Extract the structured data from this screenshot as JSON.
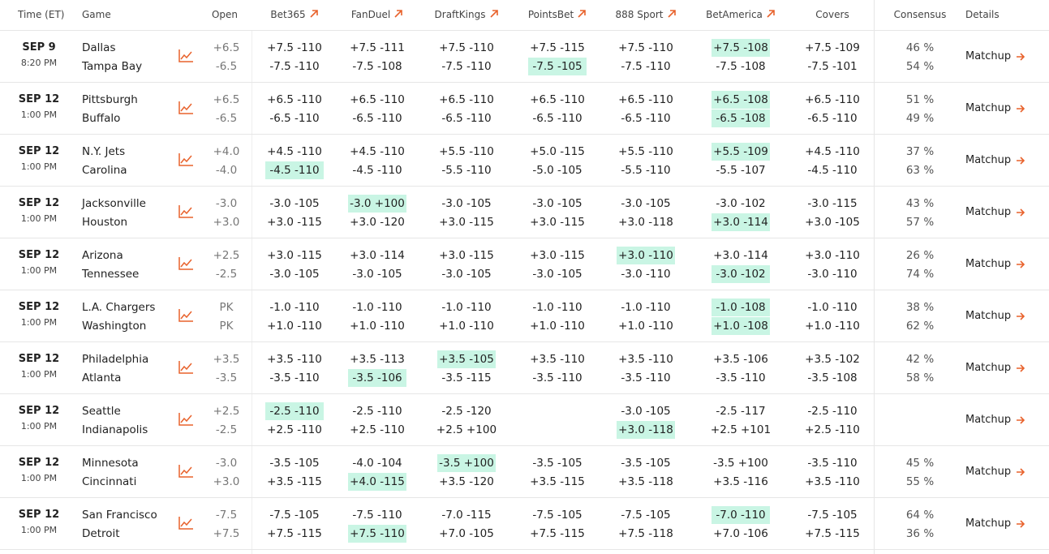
{
  "columns": {
    "time": "Time (ET)",
    "game": "Game",
    "open": "Open",
    "consensus": "Consensus",
    "details": "Details"
  },
  "books": [
    {
      "name": "Bet365",
      "external": true
    },
    {
      "name": "FanDuel",
      "external": true
    },
    {
      "name": "DraftKings",
      "external": true
    },
    {
      "name": "PointsBet",
      "external": true
    },
    {
      "name": "888 Sport",
      "external": true
    },
    {
      "name": "BetAmerica",
      "external": true
    },
    {
      "name": "Covers",
      "external": false
    }
  ],
  "highlight_color": "#c9f5e4",
  "accent_color": "#e8622c",
  "rows": [
    {
      "date": "SEP 9",
      "time": "8:20 PM",
      "teams": [
        "Dallas",
        "Tampa Bay"
      ],
      "open": [
        "+6.5",
        "-6.5"
      ],
      "lines": [
        [
          "+7.5 -110",
          "-7.5 -110"
        ],
        [
          "+7.5 -111",
          "-7.5 -108"
        ],
        [
          "+7.5 -110",
          "-7.5 -110"
        ],
        [
          "+7.5 -115",
          "-7.5 -105"
        ],
        [
          "+7.5 -110",
          "-7.5 -110"
        ],
        [
          "+7.5 -108",
          "-7.5 -108"
        ],
        [
          "+7.5 -109",
          "-7.5 -101"
        ]
      ],
      "best": [
        [
          3,
          1
        ],
        [
          5,
          0
        ]
      ],
      "consensus": [
        "46 %",
        "54 %"
      ],
      "details": "Matchup"
    },
    {
      "date": "SEP 12",
      "time": "1:00 PM",
      "teams": [
        "Pittsburgh",
        "Buffalo"
      ],
      "open": [
        "+6.5",
        "-6.5"
      ],
      "lines": [
        [
          "+6.5 -110",
          "-6.5 -110"
        ],
        [
          "+6.5 -110",
          "-6.5 -110"
        ],
        [
          "+6.5 -110",
          "-6.5 -110"
        ],
        [
          "+6.5 -110",
          "-6.5 -110"
        ],
        [
          "+6.5 -110",
          "-6.5 -110"
        ],
        [
          "+6.5 -108",
          "-6.5 -108"
        ],
        [
          "+6.5 -110",
          "-6.5 -110"
        ]
      ],
      "best": [
        [
          5,
          0
        ],
        [
          5,
          1
        ]
      ],
      "consensus": [
        "51 %",
        "49 %"
      ],
      "details": "Matchup"
    },
    {
      "date": "SEP 12",
      "time": "1:00 PM",
      "teams": [
        "N.Y. Jets",
        "Carolina"
      ],
      "open": [
        "+4.0",
        "-4.0"
      ],
      "lines": [
        [
          "+4.5 -110",
          "-4.5 -110"
        ],
        [
          "+4.5 -110",
          "-4.5 -110"
        ],
        [
          "+5.5 -110",
          "-5.5 -110"
        ],
        [
          "+5.0 -115",
          "-5.0 -105"
        ],
        [
          "+5.5 -110",
          "-5.5 -110"
        ],
        [
          "+5.5 -109",
          "-5.5 -107"
        ],
        [
          "+4.5 -110",
          "-4.5 -110"
        ]
      ],
      "best": [
        [
          0,
          1
        ],
        [
          5,
          0
        ]
      ],
      "consensus": [
        "37 %",
        "63 %"
      ],
      "details": "Matchup"
    },
    {
      "date": "SEP 12",
      "time": "1:00 PM",
      "teams": [
        "Jacksonville",
        "Houston"
      ],
      "open": [
        "-3.0",
        "+3.0"
      ],
      "lines": [
        [
          "-3.0 -105",
          "+3.0 -115"
        ],
        [
          "-3.0 +100",
          "+3.0 -120"
        ],
        [
          "-3.0 -105",
          "+3.0 -115"
        ],
        [
          "-3.0 -105",
          "+3.0 -115"
        ],
        [
          "-3.0 -105",
          "+3.0 -118"
        ],
        [
          "-3.0 -102",
          "+3.0 -114"
        ],
        [
          "-3.0 -115",
          "+3.0 -105"
        ]
      ],
      "best": [
        [
          1,
          0
        ],
        [
          5,
          1
        ]
      ],
      "consensus": [
        "43 %",
        "57 %"
      ],
      "details": "Matchup"
    },
    {
      "date": "SEP 12",
      "time": "1:00 PM",
      "teams": [
        "Arizona",
        "Tennessee"
      ],
      "open": [
        "+2.5",
        "-2.5"
      ],
      "lines": [
        [
          "+3.0 -115",
          "-3.0 -105"
        ],
        [
          "+3.0 -114",
          "-3.0 -105"
        ],
        [
          "+3.0 -115",
          "-3.0 -105"
        ],
        [
          "+3.0 -115",
          "-3.0 -105"
        ],
        [
          "+3.0 -110",
          "-3.0 -110"
        ],
        [
          "+3.0 -114",
          "-3.0 -102"
        ],
        [
          "+3.0 -110",
          "-3.0 -110"
        ]
      ],
      "best": [
        [
          4,
          0
        ],
        [
          5,
          1
        ]
      ],
      "consensus": [
        "26 %",
        "74 %"
      ],
      "details": "Matchup"
    },
    {
      "date": "SEP 12",
      "time": "1:00 PM",
      "teams": [
        "L.A. Chargers",
        "Washington"
      ],
      "open": [
        "PK",
        "PK"
      ],
      "lines": [
        [
          "-1.0 -110",
          "+1.0 -110"
        ],
        [
          "-1.0 -110",
          "+1.0 -110"
        ],
        [
          "-1.0 -110",
          "+1.0 -110"
        ],
        [
          "-1.0 -110",
          "+1.0 -110"
        ],
        [
          "-1.0 -110",
          "+1.0 -110"
        ],
        [
          "-1.0 -108",
          "+1.0 -108"
        ],
        [
          "-1.0 -110",
          "+1.0 -110"
        ]
      ],
      "best": [
        [
          5,
          0
        ],
        [
          5,
          1
        ]
      ],
      "consensus": [
        "38 %",
        "62 %"
      ],
      "details": "Matchup"
    },
    {
      "date": "SEP 12",
      "time": "1:00 PM",
      "teams": [
        "Philadelphia",
        "Atlanta"
      ],
      "open": [
        "+3.5",
        "-3.5"
      ],
      "lines": [
        [
          "+3.5 -110",
          "-3.5 -110"
        ],
        [
          "+3.5 -113",
          "-3.5 -106"
        ],
        [
          "+3.5 -105",
          "-3.5 -115"
        ],
        [
          "+3.5 -110",
          "-3.5 -110"
        ],
        [
          "+3.5 -110",
          "-3.5 -110"
        ],
        [
          "+3.5 -106",
          "-3.5 -110"
        ],
        [
          "+3.5 -102",
          "-3.5 -108"
        ]
      ],
      "best": [
        [
          1,
          1
        ],
        [
          2,
          0
        ]
      ],
      "consensus": [
        "42 %",
        "58 %"
      ],
      "details": "Matchup"
    },
    {
      "date": "SEP 12",
      "time": "1:00 PM",
      "teams": [
        "Seattle",
        "Indianapolis"
      ],
      "open": [
        "+2.5",
        "-2.5"
      ],
      "lines": [
        [
          "-2.5 -110",
          "+2.5 -110"
        ],
        [
          "-2.5 -110",
          "+2.5 -110"
        ],
        [
          "-2.5 -120",
          "+2.5 +100"
        ],
        null,
        [
          "-3.0 -105",
          "+3.0 -118"
        ],
        [
          "-2.5 -117",
          "+2.5 +101"
        ],
        [
          "-2.5 -110",
          "+2.5 -110"
        ]
      ],
      "best": [
        [
          0,
          0
        ],
        [
          4,
          1
        ]
      ],
      "consensus": null,
      "details": "Matchup"
    },
    {
      "date": "SEP 12",
      "time": "1:00 PM",
      "teams": [
        "Minnesota",
        "Cincinnati"
      ],
      "open": [
        "-3.0",
        "+3.0"
      ],
      "lines": [
        [
          "-3.5 -105",
          "+3.5 -115"
        ],
        [
          "-4.0 -104",
          "+4.0 -115"
        ],
        [
          "-3.5 +100",
          "+3.5 -120"
        ],
        [
          "-3.5 -105",
          "+3.5 -115"
        ],
        [
          "-3.5 -105",
          "+3.5 -118"
        ],
        [
          "-3.5 +100",
          "+3.5 -116"
        ],
        [
          "-3.5 -110",
          "+3.5 -110"
        ]
      ],
      "best": [
        [
          1,
          1
        ],
        [
          2,
          0
        ]
      ],
      "consensus": [
        "45 %",
        "55 %"
      ],
      "details": "Matchup"
    },
    {
      "date": "SEP 12",
      "time": "1:00 PM",
      "teams": [
        "San Francisco",
        "Detroit"
      ],
      "open": [
        "-7.5",
        "+7.5"
      ],
      "lines": [
        [
          "-7.5 -105",
          "+7.5 -115"
        ],
        [
          "-7.5 -110",
          "+7.5 -110"
        ],
        [
          "-7.0 -115",
          "+7.0 -105"
        ],
        [
          "-7.5 -105",
          "+7.5 -115"
        ],
        [
          "-7.5 -105",
          "+7.5 -118"
        ],
        [
          "-7.0 -110",
          "+7.0 -106"
        ],
        [
          "-7.5 -105",
          "+7.5 -115"
        ]
      ],
      "best": [
        [
          1,
          1
        ],
        [
          5,
          0
        ]
      ],
      "consensus": [
        "64 %",
        "36 %"
      ],
      "details": "Matchup"
    }
  ]
}
